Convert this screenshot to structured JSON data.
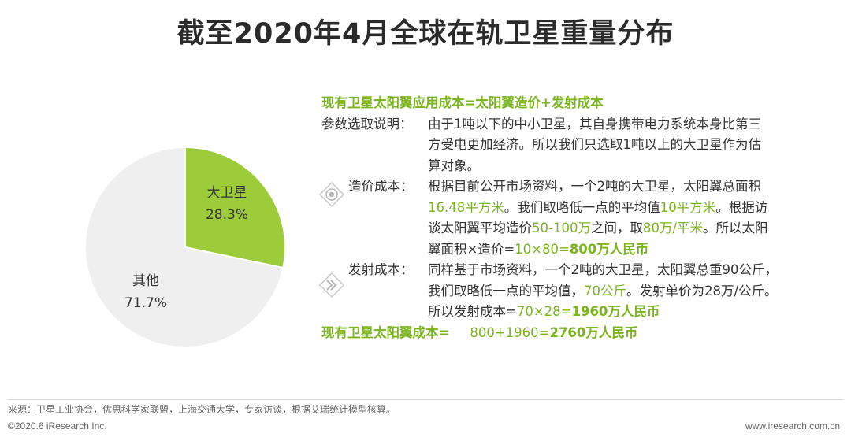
{
  "title": "截至2020年4月全球在轨卫星重量分布",
  "chart_data": {
    "type": "pie",
    "slices": [
      {
        "label": "大卫星",
        "value": 28.3,
        "value_text": "28.3%",
        "color": "#9dcc3a"
      },
      {
        "label": "其他",
        "value": 71.7,
        "value_text": "71.7%",
        "color": "#efefef"
      }
    ]
  },
  "text": {
    "heading": "现有卫星太阳翼应用成本=太阳翼造价+发射成本",
    "param_label": "参数选取说明：",
    "param_l1": "由于1吨以下的中小卫星，其自身携带电力系统本身比第三",
    "param_l2": "方受电更加经济。所以我们只选取1吨以上的大卫星作为估",
    "param_l3": "算对象。",
    "cost_label": "造价成本：",
    "cost_l1": "根据目前公开市场资料，一个2吨的大卫星，太阳翼总面积",
    "cost_l2_g1": "16.48平方米",
    "cost_l2_t1": "。我们取略低一点的平均值",
    "cost_l2_g2": "10平方米",
    "cost_l2_t2": "。根据访",
    "cost_l3_t1": "谈太阳翼平均造价",
    "cost_l3_g1": "50-100万",
    "cost_l3_t2": "之间，取",
    "cost_l3_g2": "80万/平米",
    "cost_l3_t3": "。所以太阳",
    "cost_l4_t1": "翼面积×造价=",
    "cost_l4_g1": "10×80=",
    "cost_l4_g2": "800万人民币",
    "launch_label": "发射成本：",
    "launch_l1": "同样基于市场资料，一个2吨的大卫星，太阳翼总重90公斤，",
    "launch_l2_t1": "我们取略低一点的平均值，",
    "launch_l2_g1": "70公斤",
    "launch_l2_t2": "。发射单价为28万/公斤。",
    "launch_l3_t1": "所以发射成本=",
    "launch_l3_g1": "70×28=",
    "launch_l3_g2": "1960万人民币",
    "total_label": "现有卫星太阳翼成本=",
    "total_g1": "800+1960=",
    "total_g2": "2760万人民币"
  },
  "footer": {
    "source": "来源：卫星工业协会，优思科学家联盟，上海交通大学，专家访谈，根据艾瑞统计模型核算。",
    "copyright": "©2020.6 iResearch Inc.",
    "website": "www.iresearch.com.cn"
  }
}
